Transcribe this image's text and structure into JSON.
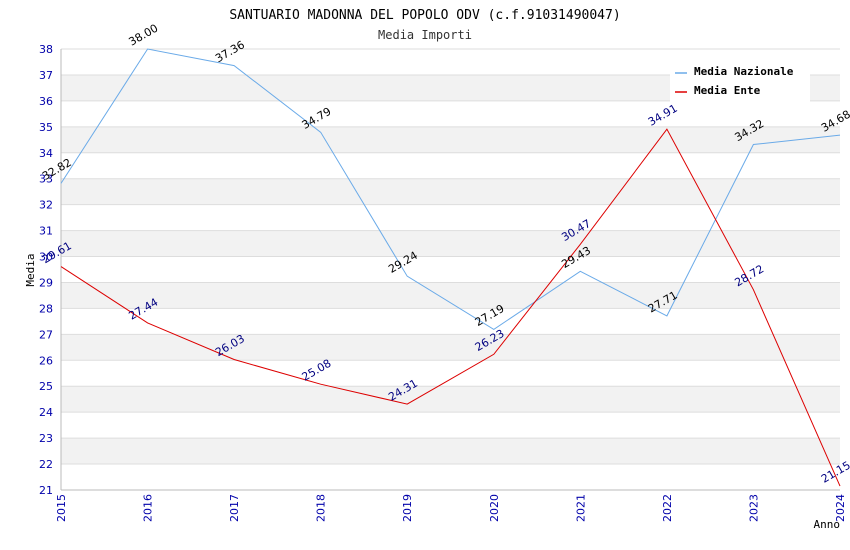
{
  "chart_data": {
    "type": "line",
    "title": "SANTUARIO MADONNA DEL POPOLO ODV (c.f.91031490047)",
    "subtitle": "Media Importi",
    "xlabel": "Anno",
    "ylabel": "Media",
    "x": [
      "2015",
      "2016",
      "2017",
      "2018",
      "2019",
      "2020",
      "2021",
      "2022",
      "2023",
      "2024"
    ],
    "ylim": [
      21,
      38
    ],
    "yticks": [
      "21",
      "22",
      "23",
      "24",
      "25",
      "26",
      "27",
      "28",
      "29",
      "30",
      "31",
      "32",
      "33",
      "34",
      "35",
      "36",
      "37",
      "38"
    ],
    "grid": true,
    "legend_position": "top-right",
    "series": [
      {
        "name": "Media Nazionale",
        "color": "#6aaae8",
        "label_color": "#000000",
        "values": [
          32.82,
          38.0,
          37.36,
          34.79,
          29.24,
          27.19,
          29.43,
          27.71,
          34.32,
          34.68
        ],
        "labels": [
          "32.82",
          "38.00",
          "37.36",
          "34.79",
          "29.24",
          "27.19",
          "29.43",
          "27.71",
          "34.32",
          "34.68"
        ]
      },
      {
        "name": "Media Ente",
        "color": "#dd0000",
        "label_color": "#000080",
        "values": [
          29.61,
          27.44,
          26.03,
          25.08,
          24.31,
          26.23,
          30.47,
          34.91,
          28.72,
          21.15
        ],
        "labels": [
          "29.61",
          "27.44",
          "26.03",
          "25.08",
          "24.31",
          "26.23",
          "30.47",
          "34.91",
          "28.72",
          "21.15"
        ]
      }
    ]
  }
}
